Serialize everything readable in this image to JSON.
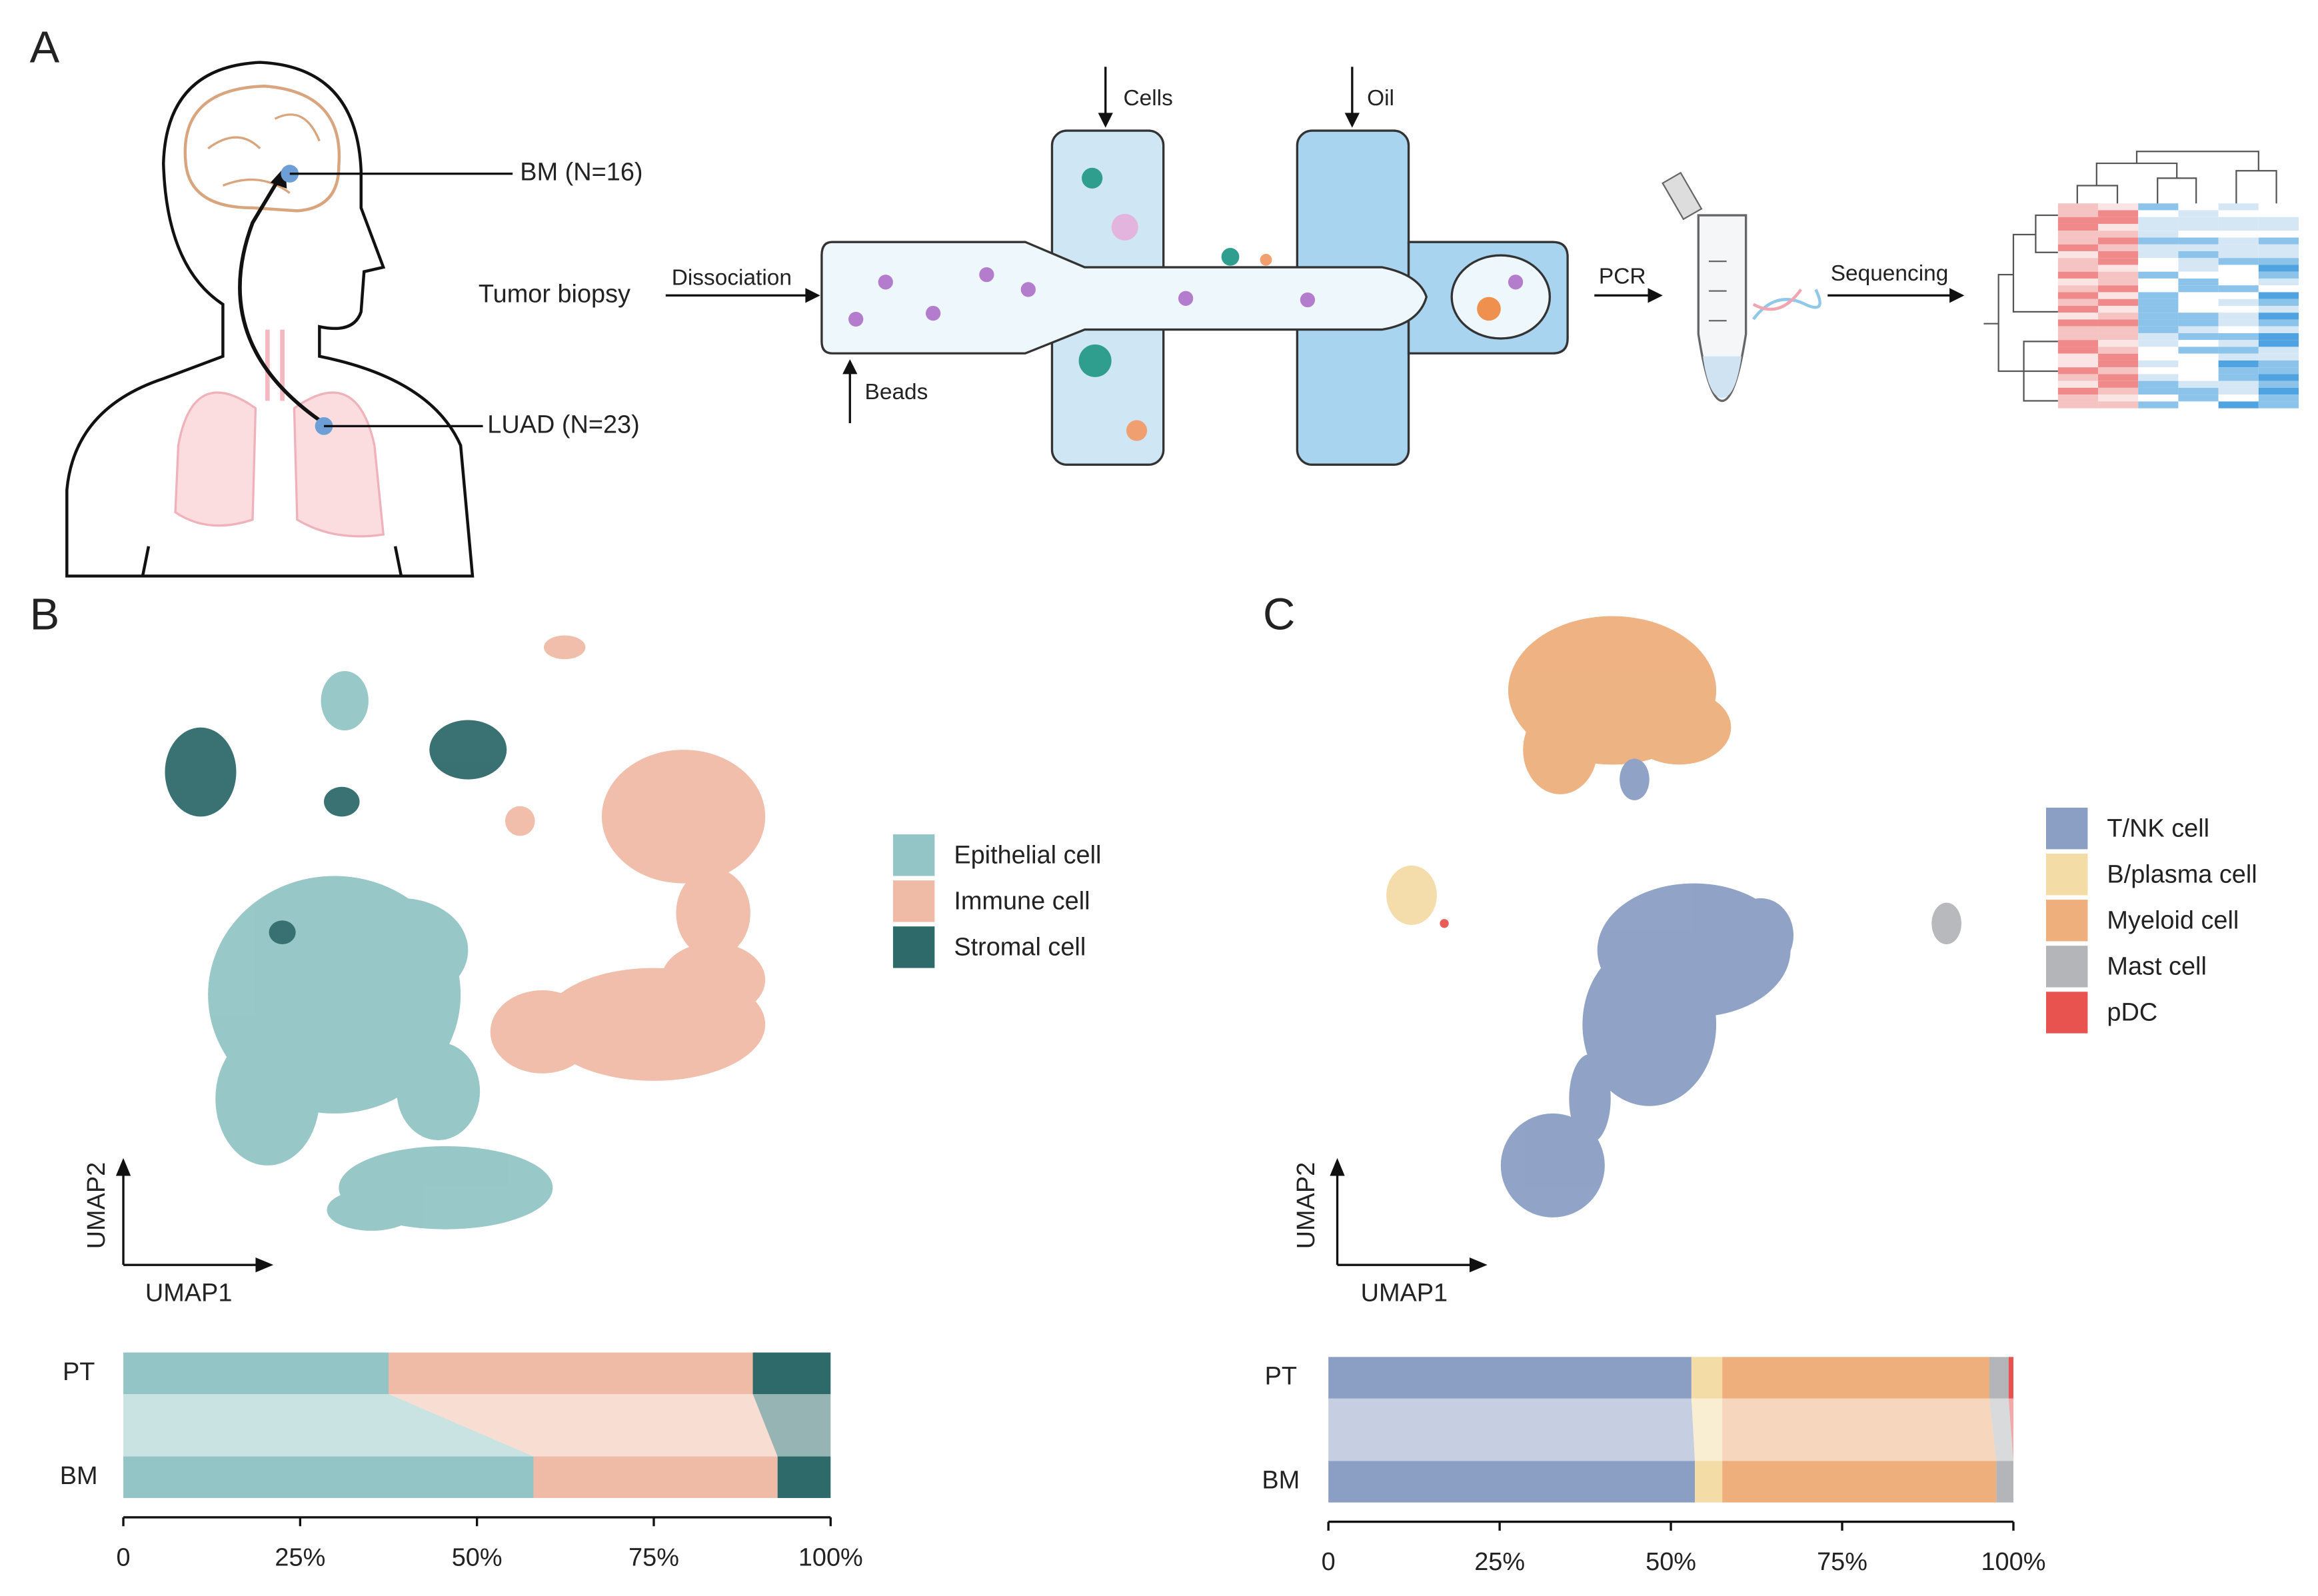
{
  "panels": {
    "a": "A",
    "b": "B",
    "c": "C"
  },
  "diagram": {
    "bm": "BM (N=16)",
    "luad": "LUAD (N=23)",
    "biopsy": "Tumor biopsy",
    "dissociation": "Dissociation",
    "beads": "Beads",
    "cells": "Cells",
    "oil": "Oil",
    "pcr": "PCR",
    "sequencing": "Sequencing"
  },
  "umap": [
    {
      "x_label": "UMAP1",
      "y_label": "UMAP2"
    },
    {
      "x_label": "UMAP1",
      "y_label": "UMAP2"
    }
  ],
  "chart_data": [
    {
      "type": "stacked_bar_h",
      "categories": [
        "PT",
        "BM"
      ],
      "series": [
        {
          "name": "Epithelial cell",
          "color": "#93c5c6",
          "values": [
            37.5,
            58
          ]
        },
        {
          "name": "Immune cell",
          "color": "#f0bba6",
          "values": [
            51.5,
            34.5
          ]
        },
        {
          "name": "Stromal cell",
          "color": "#2f6a6b",
          "values": [
            11,
            7.5
          ]
        }
      ],
      "xlim": [
        0,
        100
      ],
      "xticks": [
        0,
        {
          "value": 25,
          "label": "25%"
        },
        {
          "value": 50,
          "label": "50%"
        },
        {
          "value": 75,
          "label": "75%"
        },
        {
          "value": 100,
          "label": "100%"
        }
      ]
    },
    {
      "type": "stacked_bar_h",
      "categories": [
        "PT",
        "BM"
      ],
      "series": [
        {
          "name": "T/NK cell",
          "color": "#8b9fc4",
          "values": [
            53,
            53.5
          ]
        },
        {
          "name": "B/plasma cell",
          "color": "#f4dca6",
          "values": [
            4.5,
            4
          ]
        },
        {
          "name": "Myeloid cell",
          "color": "#eeaf7c",
          "values": [
            39,
            40
          ]
        },
        {
          "name": "Mast cell",
          "color": "#b3b5b8",
          "values": [
            2.8,
            2.5
          ]
        },
        {
          "name": "pDC",
          "color": "#e8534f",
          "values": [
            0.7,
            0
          ]
        }
      ],
      "xlim": [
        0,
        100
      ],
      "xticks": [
        0,
        {
          "value": 25,
          "label": "25%"
        },
        {
          "value": 50,
          "label": "50%"
        },
        {
          "value": 75,
          "label": "75%"
        },
        {
          "value": 100,
          "label": "100%"
        }
      ]
    }
  ]
}
